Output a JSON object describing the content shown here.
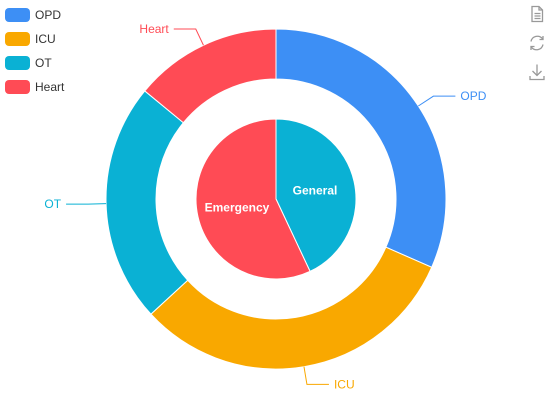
{
  "chart_data": {
    "type": "pie",
    "variant": "nested-donut",
    "legend_position": "top-left",
    "legend": [
      {
        "label": "OPD",
        "color": "#3d8ff5"
      },
      {
        "label": "ICU",
        "color": "#f9a800"
      },
      {
        "label": "OT",
        "color": "#0ab1d4"
      },
      {
        "label": "Heart",
        "color": "#ff4b55"
      }
    ],
    "outer_ring": [
      {
        "name": "OPD",
        "value": 90,
        "color": "#3d8ff5"
      },
      {
        "name": "ICU",
        "value": 90,
        "color": "#f9a800"
      },
      {
        "name": "OT",
        "value": 65,
        "color": "#0ab1d4"
      },
      {
        "name": "Heart",
        "value": 40,
        "color": "#ff4b55"
      }
    ],
    "inner_pie": [
      {
        "name": "General",
        "value": 43,
        "color": "#0ab1d4"
      },
      {
        "name": "Emergency",
        "value": 57,
        "color": "#ff4b55"
      }
    ]
  },
  "toolbox": [
    {
      "name": "data-view-icon"
    },
    {
      "name": "refresh-icon"
    },
    {
      "name": "download-icon"
    }
  ]
}
